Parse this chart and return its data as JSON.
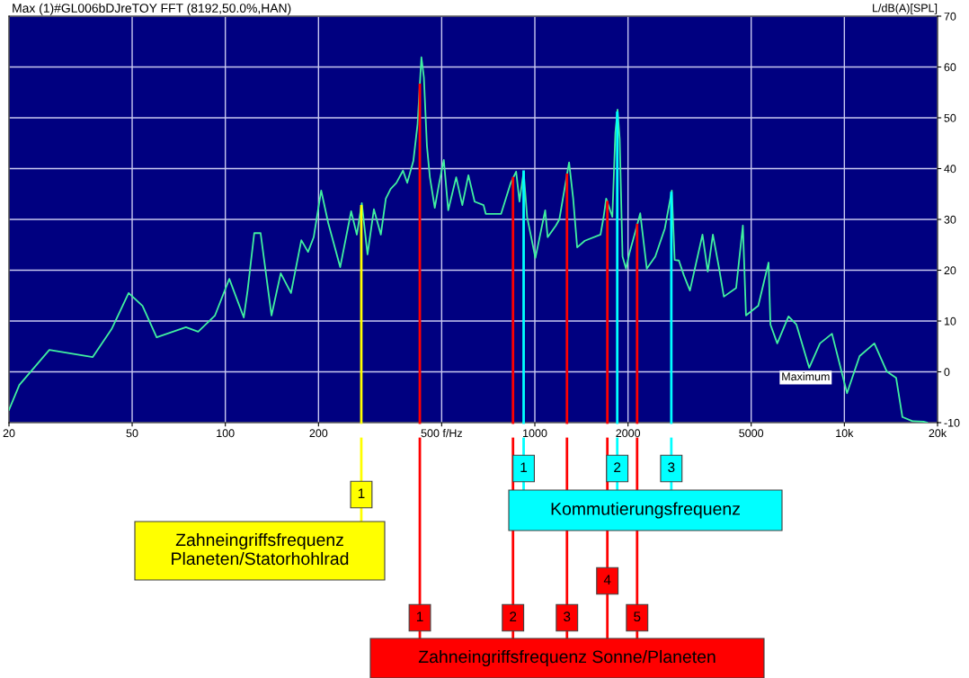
{
  "chart_data": {
    "type": "line",
    "title": "Max (1)#GL006bDJreTOY FFT (8192,50.0%,HAN)",
    "ylabel": "L/dB(A)[SPL]",
    "log": "x",
    "grid": true,
    "marker": "none",
    "line_style": "solid",
    "xlim": [
      20,
      20000
    ],
    "xticks": [
      20,
      50,
      100,
      200,
      {
        "value": 500,
        "label": "500 f/Hz"
      },
      1000,
      2000,
      5000,
      {
        "value": 10000,
        "label": "10k"
      },
      {
        "value": 20000,
        "label": "20k"
      }
    ],
    "ylim": [
      -10,
      70
    ],
    "yticks": [
      -10,
      0,
      10,
      20,
      30,
      40,
      50,
      60,
      70
    ],
    "series": [
      {
        "color": "#40f0a0",
        "x": [
          20,
          21.6,
          27,
          37.3,
          42.9,
          48.7,
          54,
          60,
          74.6,
          81.7,
          92.6,
          103,
          114.7,
          118,
          124,
          130,
          141,
          151,
          163,
          176,
          185,
          193,
          204,
          215,
          235,
          255,
          266,
          276,
          288,
          302,
          318,
          330,
          342,
          357,
          375,
          387,
          405,
          418,
          430,
          438,
          448,
          458,
          475,
          491,
          508,
          525,
          557,
          583,
          610,
          639,
          683,
          694,
          778,
          836,
          870,
          892,
          920,
          944,
          1004,
          1080,
          1100,
          1170,
          1200,
          1290,
          1330,
          1370,
          1450,
          1630,
          1670,
          1700,
          1780,
          1820,
          1850,
          1880,
          1920,
          1970,
          2020,
          2110,
          2190,
          2300,
          2450,
          2630,
          2770,
          2830,
          2920,
          3030,
          3170,
          3480,
          3620,
          3760,
          3940,
          4080,
          4470,
          4700,
          4810,
          5270,
          5690,
          5770,
          6070,
          6600,
          7000,
          7700,
          8340,
          9120,
          10200,
          11200,
          12500,
          13700,
          14700,
          15400,
          16600,
          18000,
          18500
        ],
        "values": [
          -7.5,
          -2.6,
          4.3,
          2.9,
          8.4,
          15.5,
          13,
          6.8,
          8.8,
          7.9,
          11.1,
          18.3,
          10.7,
          16,
          27.3,
          27.3,
          11.1,
          19.4,
          15.5,
          25.9,
          23.6,
          26.5,
          35.7,
          29.3,
          20.6,
          31.6,
          27,
          33.2,
          23.1,
          32,
          27,
          34.1,
          36,
          37.2,
          39.6,
          37.2,
          41.5,
          48.8,
          61.9,
          58,
          44.5,
          38.3,
          32.3,
          37.2,
          41.7,
          31.8,
          38.3,
          32.8,
          38.7,
          33.5,
          32.8,
          31.1,
          31.1,
          37.2,
          39.4,
          33.5,
          39.4,
          30.5,
          22.4,
          31.8,
          26.5,
          28.8,
          30,
          41.2,
          34.1,
          24.5,
          25.8,
          27,
          30.7,
          34.1,
          30.5,
          47,
          51.6,
          45.8,
          22.7,
          20.3,
          23.3,
          27.5,
          31.2,
          20.3,
          22.7,
          28.2,
          35.7,
          22,
          21.9,
          19,
          16,
          27,
          19.7,
          27,
          20.3,
          14.8,
          16.5,
          28.8,
          11.1,
          13,
          21.5,
          9.3,
          5.6,
          10.9,
          9.3,
          0.8,
          5.6,
          7.5,
          -4.2,
          3.1,
          5.6,
          0.1,
          -1.2,
          -8.9,
          -9.7,
          -9.8,
          -10
        ]
      }
    ],
    "ref_lines": [
      {
        "axis": "x",
        "value": 275,
        "color": "#ffff00"
      },
      {
        "axis": "x",
        "value": 425,
        "color": "#ff0000"
      },
      {
        "axis": "x",
        "value": 850,
        "color": "#ff0000"
      },
      {
        "axis": "x",
        "value": 920,
        "color": "#00ffff"
      },
      {
        "axis": "x",
        "value": 1270,
        "color": "#ff0000"
      },
      {
        "axis": "x",
        "value": 1715,
        "color": "#ff0000"
      },
      {
        "axis": "x",
        "value": 1846,
        "color": "#00ffff"
      },
      {
        "axis": "x",
        "value": 2140,
        "color": "#ff0000"
      },
      {
        "axis": "x",
        "value": 2760,
        "color": "#00ffff"
      }
    ],
    "annotations": [
      "1",
      "1",
      "2",
      "1",
      "3",
      "4",
      "2",
      "5",
      "3",
      "Zahneingriffsfrequenz\nPlaneten/Statorhohlrad",
      "Kommutierungsfrequenz",
      "Zahneingriffsfrequenz Sonne/Planeten",
      "Maximum"
    ]
  }
}
